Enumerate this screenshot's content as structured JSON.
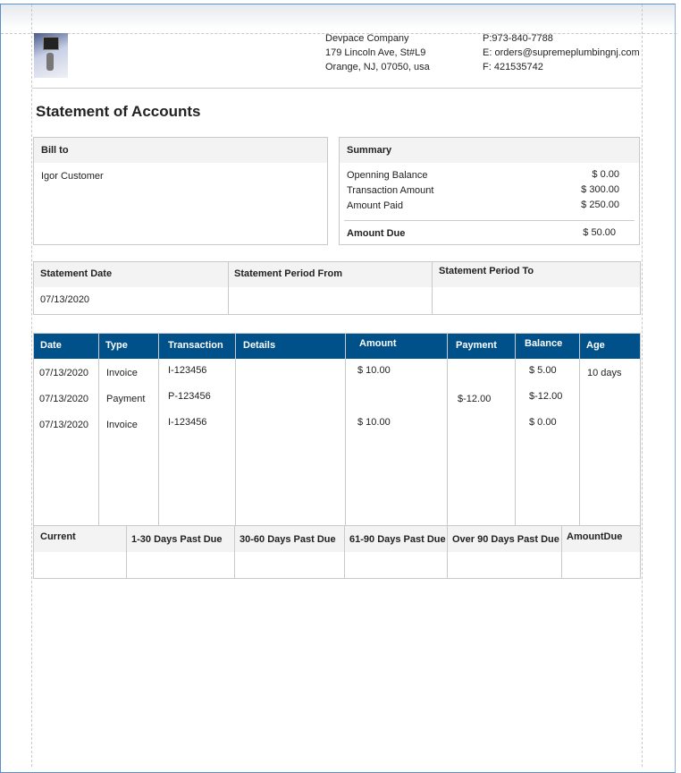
{
  "company": {
    "name": "Devpace Company",
    "address1": "179 Lincoln Ave, St#L9",
    "address2": "Orange, NJ, 07050, usa",
    "phone": "P:973-840-7788",
    "email": "E: orders@supremeplumbingnj.com",
    "fax": "F: 421535742"
  },
  "title": "Statement of Accounts",
  "bill_to": {
    "label": "Bill to",
    "name": "Igor Customer"
  },
  "summary": {
    "label": "Summary",
    "rows": [
      {
        "label": "Openning Balance",
        "value": "$ 0.00"
      },
      {
        "label": "Transaction Amount",
        "value": "$ 300.00"
      },
      {
        "label": "Amount  Paid",
        "value": "$ 250.00"
      }
    ],
    "due_label": "Amount Due",
    "due_value": "$ 50.00"
  },
  "statement": {
    "date_label": "Statement Date",
    "from_label": "Statement Period From",
    "to_label": "Statement Period To",
    "date": "07/13/2020",
    "from": "",
    "to": ""
  },
  "transactions": {
    "headers": [
      "Date",
      "Type",
      "Transaction",
      "Details",
      "Amount",
      "Payment",
      "Balance",
      "Age"
    ],
    "rows": [
      [
        "07/13/2020",
        "Invoice",
        "I-123456",
        "",
        "$ 10.00",
        "",
        "$ 5.00",
        "10 days"
      ],
      [
        "07/13/2020",
        "Payment",
        "P-123456",
        "",
        "",
        "$-12.00",
        "$-12.00",
        ""
      ],
      [
        "07/13/2020",
        "Invoice",
        "I-123456",
        "",
        "$ 10.00",
        "",
        "$ 0.00",
        ""
      ]
    ]
  },
  "aging": {
    "headers": [
      "Current",
      "1-30 Days Past Due",
      "30-60 Days Past Due",
      "61-90 Days Past Due",
      "Over 90 Days Past Due",
      "AmountDue"
    ]
  },
  "colors": {
    "table_header": "#00508a"
  }
}
